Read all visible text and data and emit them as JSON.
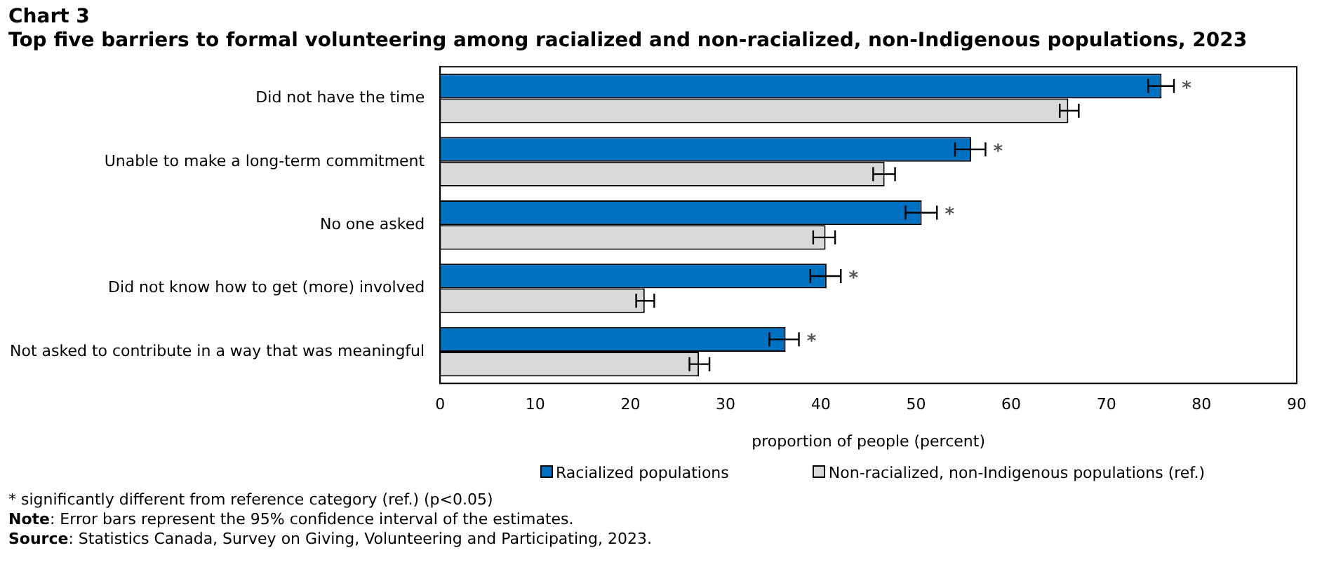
{
  "chart_data": {
    "type": "bar",
    "orientation": "horizontal",
    "title": "Chart 3",
    "subtitle": "Top five barriers to formal volunteering among racialized and non-racialized, non-Indigenous populations, 2023",
    "xlabel": "proportion of people (percent)",
    "categories": [
      "Did not have the time",
      "Unable to make a long-term commitment",
      "No one asked",
      "Did not know how to get (more) involved",
      "Not asked to contribute in a way that was meaningful"
    ],
    "series": [
      {
        "name": "Racialized populations",
        "color": "#0070c0",
        "values": [
          75.8,
          55.8,
          50.6,
          40.6,
          36.3
        ],
        "errors": [
          [
            74.4,
            77.1
          ],
          [
            54.1,
            57.3
          ],
          [
            48.9,
            52.2
          ],
          [
            38.9,
            42.1
          ],
          [
            34.6,
            37.7
          ]
        ]
      },
      {
        "name": "Non-racialized, non-Indigenous populations (ref.)",
        "color": "#d9d9d9",
        "values": [
          66.0,
          46.7,
          40.5,
          21.5,
          27.2
        ],
        "errors": [
          [
            65.1,
            67.1
          ],
          [
            45.5,
            47.8
          ],
          [
            39.2,
            41.5
          ],
          [
            20.6,
            22.5
          ],
          [
            26.2,
            28.3
          ]
        ]
      }
    ],
    "xlim": [
      0,
      90
    ],
    "xticks": [
      0,
      10,
      20,
      30,
      40,
      50,
      60,
      70,
      80,
      90
    ],
    "grid": false,
    "legend": "bottom",
    "annotations": [
      {
        "text": "*",
        "x": 77.1,
        "y": "Did not have the time"
      },
      {
        "text": "*",
        "x": 57.3,
        "y": "Unable to make a long-term commitment"
      },
      {
        "text": "*",
        "x": 52.2,
        "y": "No one asked"
      },
      {
        "text": "*",
        "x": 42.1,
        "y": "Did not know how to get (more) involved"
      },
      {
        "text": "*",
        "x": 37.7,
        "y": "Not asked to contribute in a way that was meaningful"
      },
      "* significantly different from reference category (ref.) (p<0.05)",
      "Note: Error bars represent the 95% confidence interval of the estimates.",
      "Source: Statistics Canada, Survey on Giving, Volunteering and Participating, 2023."
    ]
  }
}
